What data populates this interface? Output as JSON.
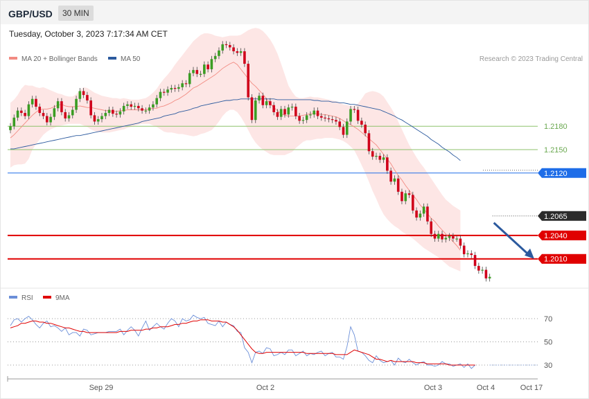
{
  "header": {
    "pair": "GBP/USD",
    "timeframe": "30 MIN",
    "datetime": "Tuesday, October 3, 2023 7:17:34 AM CET"
  },
  "legend": {
    "bollinger_label": "MA 20 + Bollinger Bands",
    "bollinger_color": "#f28b82",
    "ma50_label": "MA 50",
    "ma50_color": "#2c5a9e",
    "credit": "Research © 2023 Trading Central"
  },
  "rsi_legend": {
    "rsi_label": "RSI",
    "rsi_color": "#6b8fd8",
    "ma_label": "9MA",
    "ma_color": "#e00000"
  },
  "chart_data": [
    {
      "type": "candlestick",
      "title": "GBP/USD 30 MIN",
      "y_range": [
        1.2,
        1.226
      ],
      "x_tick_labels": [
        "Sep 29",
        "Oct 2",
        "Oct 3",
        "Oct 4",
        "Oct 17"
      ],
      "grid": false,
      "levels": [
        {
          "label": "1.2180",
          "value": 1.218,
          "color": "#8dc26b",
          "style": "line"
        },
        {
          "label": "1.2150",
          "value": 1.215,
          "color": "#8dc26b",
          "style": "line"
        },
        {
          "label": "1.2120",
          "value": 1.212,
          "color": "#1e6de8",
          "style": "line"
        },
        {
          "label": "1.2065",
          "value": 1.2065,
          "color": "#333333",
          "style": "current"
        },
        {
          "label": "1.2040",
          "value": 1.204,
          "color": "#e00000",
          "style": "support"
        },
        {
          "label": "1.2010",
          "value": 1.201,
          "color": "#e00000",
          "style": "support"
        }
      ],
      "candles": {
        "closes": [
          1.218,
          1.2191,
          1.22,
          1.2197,
          1.2193,
          1.2208,
          1.2215,
          1.2205,
          1.2197,
          1.2193,
          1.2185,
          1.2192,
          1.2203,
          1.2212,
          1.2198,
          1.219,
          1.2194,
          1.2201,
          1.2215,
          1.2225,
          1.222,
          1.2213,
          1.2194,
          1.2186,
          1.2189,
          1.2193,
          1.2197,
          1.2201,
          1.2196,
          1.2195,
          1.2199,
          1.2206,
          1.2208,
          1.2205,
          1.2206,
          1.2203,
          1.22,
          1.22,
          1.2204,
          1.2208,
          1.2216,
          1.2224,
          1.2223,
          1.2227,
          1.2229,
          1.2228,
          1.223,
          1.2235,
          1.2234,
          1.2248,
          1.2252,
          1.2247,
          1.2247,
          1.2259,
          1.2253,
          1.2266,
          1.227,
          1.2277,
          1.2285,
          1.2284,
          1.2281,
          1.2276,
          1.2274,
          1.2276,
          1.226,
          1.2217,
          1.2188,
          1.2213,
          1.2219,
          1.2207,
          1.2212,
          1.2207,
          1.2198,
          1.2192,
          1.2202,
          1.2195,
          1.2204,
          1.2205,
          1.2193,
          1.2187,
          1.2188,
          1.2194,
          1.2195,
          1.22,
          1.2193,
          1.2191,
          1.219,
          1.2189,
          1.2188,
          1.2186,
          1.2179,
          1.2169,
          1.2186,
          1.2202,
          1.2201,
          1.2187,
          1.2182,
          1.2171,
          1.2148,
          1.2141,
          1.2142,
          1.2137,
          1.214,
          1.2123,
          1.2109,
          1.2113,
          1.2096,
          1.2084,
          1.2094,
          1.2092,
          1.2072,
          1.2063,
          1.2068,
          1.2077,
          1.2058,
          1.2042,
          1.2036,
          1.2042,
          1.2035,
          1.2037,
          1.2039,
          1.2036,
          1.2036,
          1.2027,
          1.2016,
          1.2017,
          1.2015,
          1.2001,
          1.1995,
          1.1996,
          1.1985,
          1.1987
        ],
        "bull_color": "#3a9d23",
        "bear_color": "#d0021b"
      },
      "ma20": [
        1.2165,
        1.2169,
        1.2174,
        1.2179,
        1.2184,
        1.2189,
        1.2194,
        1.2198,
        1.2201,
        1.2202,
        1.2202,
        1.2203,
        1.2205,
        1.2207,
        1.2208,
        1.2206,
        1.2205,
        1.2205,
        1.2205,
        1.2206,
        1.2205,
        1.2204,
        1.2204,
        1.2203,
        1.2202,
        1.2201,
        1.22,
        1.22,
        1.2199,
        1.2199,
        1.22,
        1.22,
        1.2201,
        1.2201,
        1.2201,
        1.2201,
        1.2201,
        1.2201,
        1.2202,
        1.2203,
        1.2203,
        1.2205,
        1.2206,
        1.2208,
        1.221,
        1.2213,
        1.2215,
        1.2218,
        1.2221,
        1.2225,
        1.2229,
        1.2231,
        1.2234,
        1.2237,
        1.224,
        1.2243,
        1.2246,
        1.225,
        1.2254,
        1.2257,
        1.226,
        1.2262,
        1.2259,
        1.2253,
        1.2247,
        1.2241,
        1.2235,
        1.2231,
        1.2226,
        1.2221,
        1.2215,
        1.2209,
        1.2204,
        1.22,
        1.2196,
        1.2194,
        1.2193,
        1.2193,
        1.2193,
        1.2193,
        1.2194,
        1.2195,
        1.2196,
        1.2196,
        1.2196,
        1.2195,
        1.2195,
        1.2194,
        1.2193,
        1.2192,
        1.219,
        1.2187,
        1.2184,
        1.2182,
        1.2179,
        1.2176,
        1.2172,
        1.2168,
        1.2164,
        1.216,
        1.2156,
        1.215,
        1.2144,
        1.2138,
        1.2132,
        1.2124,
        1.2117,
        1.2111,
        1.2104,
        1.2098,
        1.2092,
        1.2086,
        1.2079,
        1.2074,
        1.2068,
        1.2062,
        1.2058,
        1.2052,
        1.2047,
        1.2042,
        1.2037,
        1.2032,
        1.2027,
        1.2021
      ],
      "upper_band": [
        1.221,
        1.2214,
        1.222,
        1.2228,
        1.2233,
        1.2232,
        1.2232,
        1.223,
        1.2229,
        1.223,
        1.2228,
        1.2226,
        1.2224,
        1.2222,
        1.2221,
        1.2219,
        1.2218,
        1.2218,
        1.2221,
        1.2226,
        1.223,
        1.2229,
        1.2226,
        1.2223,
        1.2221,
        1.2219,
        1.2218,
        1.2217,
        1.2216,
        1.2216,
        1.2215,
        1.2216,
        1.2215,
        1.2214,
        1.2214,
        1.2214,
        1.2215,
        1.2216,
        1.2219,
        1.2223,
        1.2228,
        1.2235,
        1.2241,
        1.2246,
        1.2252,
        1.2259,
        1.2265,
        1.2271,
        1.2277,
        1.2283,
        1.2289,
        1.2293,
        1.2297,
        1.2299,
        1.2299,
        1.2298,
        1.2296,
        1.2295,
        1.2294,
        1.2295,
        1.2296,
        1.2296,
        1.2296,
        1.2297,
        1.23,
        1.2303,
        1.2305,
        1.2306,
        1.2305,
        1.2302,
        1.2297,
        1.2291,
        1.2283,
        1.2273,
        1.226,
        1.2246,
        1.2232,
        1.2224,
        1.2218,
        1.2216,
        1.2216,
        1.2217,
        1.2218,
        1.2217,
        1.2217,
        1.2216,
        1.2215,
        1.2214,
        1.2213,
        1.2212,
        1.221,
        1.2208,
        1.2207,
        1.2206,
        1.2206,
        1.2209,
        1.2215,
        1.2222,
        1.2224,
        1.2225,
        1.2224,
        1.2222,
        1.2218,
        1.2211,
        1.2204,
        1.2196,
        1.2186,
        1.2176,
        1.2166,
        1.2156,
        1.2148,
        1.214,
        1.2133,
        1.2127,
        1.212,
        1.2113,
        1.2106,
        1.2099,
        1.2092,
        1.2086,
        1.2082,
        1.2078,
        1.2075,
        1.2072
      ],
      "lower_band": [
        1.2127,
        1.213,
        1.2131,
        1.2131,
        1.2132,
        1.2138,
        1.215,
        1.2157,
        1.2163,
        1.2169,
        1.2173,
        1.2176,
        1.2178,
        1.218,
        1.2181,
        1.2182,
        1.2183,
        1.2183,
        1.2183,
        1.2183,
        1.2181,
        1.2179,
        1.2176,
        1.2174,
        1.2173,
        1.2172,
        1.2172,
        1.2172,
        1.2173,
        1.2174,
        1.2175,
        1.2176,
        1.2178,
        1.2179,
        1.2181,
        1.2182,
        1.2183,
        1.2183,
        1.2183,
        1.2181,
        1.2179,
        1.2176,
        1.2173,
        1.2172,
        1.2172,
        1.2171,
        1.217,
        1.217,
        1.2169,
        1.2168,
        1.2167,
        1.2168,
        1.217,
        1.2171,
        1.2173,
        1.2175,
        1.218,
        1.2186,
        1.2193,
        1.2198,
        1.2201,
        1.2201,
        1.2198,
        1.2192,
        1.2184,
        1.2175,
        1.2166,
        1.2159,
        1.2154,
        1.215,
        1.2147,
        1.2144,
        1.2143,
        1.2143,
        1.2143,
        1.2143,
        1.2145,
        1.2147,
        1.2152,
        1.2156,
        1.216,
        1.2162,
        1.2162,
        1.2163,
        1.2164,
        1.2164,
        1.2165,
        1.2165,
        1.2165,
        1.2164,
        1.2163,
        1.2161,
        1.2158,
        1.2154,
        1.2149,
        1.214,
        1.213,
        1.212,
        1.2109,
        1.2097,
        1.2087,
        1.2076,
        1.2067,
        1.2061,
        1.2056,
        1.2052,
        1.2049,
        1.2045,
        1.2042,
        1.2039,
        1.2036,
        1.2032,
        1.2028,
        1.2024,
        1.2021,
        1.2018,
        1.2015,
        1.2012,
        1.2008,
        1.2004,
        1.2,
        1.1998,
        1.1996,
        1.1994
      ],
      "ma50": [
        1.2151,
        1.2151,
        1.2152,
        1.2153,
        1.2154,
        1.2155,
        1.2156,
        1.2157,
        1.2158,
        1.2159,
        1.216,
        1.2161,
        1.2162,
        1.2163,
        1.2164,
        1.2165,
        1.2166,
        1.2167,
        1.2168,
        1.2168,
        1.2169,
        1.217,
        1.2171,
        1.2172,
        1.2173,
        1.2174,
        1.2175,
        1.2176,
        1.2177,
        1.2178,
        1.2179,
        1.218,
        1.2181,
        1.2182,
        1.2183,
        1.2184,
        1.2186,
        1.2187,
        1.2188,
        1.2189,
        1.219,
        1.2191,
        1.2193,
        1.2194,
        1.2195,
        1.2196,
        1.2198,
        1.2199,
        1.22,
        1.2201,
        1.2203,
        1.2204,
        1.2206,
        1.2207,
        1.2208,
        1.2209,
        1.221,
        1.2211,
        1.2212,
        1.2213,
        1.2213,
        1.2214,
        1.2214,
        1.2215,
        1.2215,
        1.2215,
        1.2215,
        1.2215,
        1.2215,
        1.2215,
        1.2215,
        1.2215,
        1.2215,
        1.2214,
        1.2214,
        1.2214,
        1.2214,
        1.2214,
        1.2214,
        1.2214,
        1.2214,
        1.2214,
        1.2214,
        1.2213,
        1.2213,
        1.2212,
        1.2212,
        1.2212,
        1.2211,
        1.2211,
        1.221,
        1.221,
        1.2209,
        1.2208,
        1.2208,
        1.2207,
        1.2206,
        1.2205,
        1.2204,
        1.2203,
        1.2202,
        1.2201,
        1.2199,
        1.2197,
        1.2195,
        1.2193,
        1.219,
        1.2188,
        1.2185,
        1.2182,
        1.2179,
        1.2176,
        1.2173,
        1.217,
        1.2167,
        1.2163,
        1.216,
        1.2157,
        1.2153,
        1.215,
        1.2147,
        1.2143,
        1.214,
        1.2136
      ],
      "projection": {
        "from": 1.2058,
        "to": 1.201,
        "color": "#2c5a9e"
      }
    },
    {
      "type": "line",
      "title": "RSI",
      "y_range": [
        20,
        80
      ],
      "y_tick_labels": [
        "70",
        "50",
        "30"
      ],
      "series": [
        {
          "name": "RSI",
          "color": "#6b8fd8",
          "values": [
            64,
            69,
            70,
            67,
            70,
            72,
            69,
            65,
            62,
            66,
            68,
            63,
            64,
            62,
            59,
            62,
            56,
            58,
            58,
            55,
            61,
            60,
            56,
            57,
            58,
            58,
            58,
            59,
            59,
            59,
            61,
            56,
            60,
            63,
            60,
            55,
            62,
            68,
            60,
            63,
            66,
            63,
            61,
            66,
            70,
            68,
            63,
            70,
            68,
            69,
            73,
            71,
            70,
            71,
            66,
            65,
            64,
            68,
            63,
            67,
            65,
            64,
            59,
            58,
            45,
            41,
            32,
            41,
            42,
            40,
            45,
            44,
            38,
            39,
            41,
            39,
            43,
            43,
            38,
            40,
            42,
            38,
            40,
            39,
            41,
            42,
            38,
            40,
            41,
            37,
            37,
            35,
            46,
            63,
            56,
            42,
            41,
            38,
            34,
            32,
            38,
            34,
            32,
            33,
            34,
            30,
            36,
            33,
            32,
            35,
            32,
            30,
            32,
            33,
            30,
            30,
            29,
            30,
            33,
            31,
            31,
            29,
            30,
            31,
            28,
            31,
            27,
            30
          ]
        },
        {
          "name": "9MA",
          "color": "#e00000",
          "values": [
            62,
            63,
            64,
            66,
            66,
            67,
            68,
            68,
            67,
            67,
            66,
            66,
            65,
            64,
            63,
            62,
            62,
            61,
            60,
            59,
            59,
            58,
            58,
            58,
            58,
            58,
            58,
            58,
            58,
            58,
            59,
            59,
            59,
            60,
            60,
            60,
            60,
            61,
            61,
            62,
            62,
            63,
            63,
            63,
            64,
            65,
            65,
            66,
            66,
            67,
            68,
            68,
            69,
            69,
            69,
            68,
            68,
            68,
            67,
            67,
            65,
            63,
            60,
            56,
            52,
            48,
            44,
            41,
            40,
            40,
            41,
            41,
            41,
            41,
            41,
            41,
            41,
            41,
            41,
            41,
            41,
            40,
            40,
            40,
            40,
            40,
            40,
            40,
            40,
            39,
            39,
            39,
            39,
            41,
            43,
            42,
            41,
            40,
            39,
            37,
            35,
            35,
            34,
            33,
            34,
            33,
            33,
            33,
            33,
            33,
            33,
            32,
            32,
            32,
            31,
            31,
            31,
            31,
            31,
            31,
            30,
            30,
            30,
            30,
            30,
            30,
            30,
            30
          ]
        }
      ],
      "guides": [
        70,
        50,
        30
      ]
    }
  ]
}
